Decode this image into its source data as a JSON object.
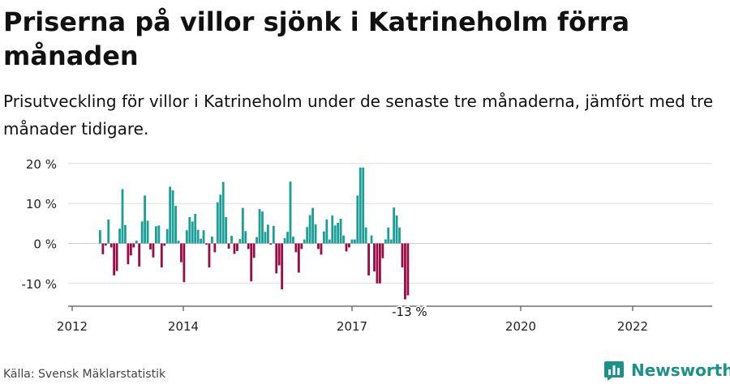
{
  "header": {
    "title": "Priserna på villor sjönk i Katrineholm förra månaden",
    "subtitle": "Prisutveckling för villor i Katrineholm under de senaste tre månaderna, jämfört med tre månader tidigare."
  },
  "footer": {
    "source": "Källa: Svensk Mäklarstatistik",
    "brand": "Newsworthy"
  },
  "colors": {
    "positive": "#1a9e96",
    "negative": "#990a46",
    "grid": "#dddddd",
    "axis": "#555555",
    "brand": "#1b9188"
  },
  "icons": {
    "brand": "bar-chart-logo-icon"
  },
  "chart_data": {
    "type": "bar",
    "title": "",
    "xlabel": "",
    "ylabel": "",
    "x_ticks": [
      "2012",
      "2014",
      "2017",
      "2020",
      "2022"
    ],
    "y_ticks": [
      "-10 %",
      "0 %",
      "10 %",
      "20 %"
    ],
    "ylim": [
      -15,
      22
    ],
    "grid": true,
    "last_label": "-13 %",
    "series": [
      {
        "name": "",
        "values": [
          3.3,
          -2.7,
          -0.5,
          6.0,
          -1.0,
          -8.0,
          -6.9,
          3.7,
          13.6,
          4.6,
          -5.2,
          -3.0,
          -1.0,
          0.7,
          -5.8,
          5.5,
          12.0,
          5.7,
          -1.5,
          -3.5,
          4.3,
          4.5,
          -6.0,
          -0.6,
          3.6,
          14.2,
          13.3,
          9.4,
          0.7,
          -4.7,
          -9.7,
          3.3,
          6.6,
          5.5,
          7.4,
          3.4,
          1.2,
          3.3,
          -0.3,
          -6.0,
          1.7,
          -2.2,
          10.3,
          12.2,
          15.4,
          6.6,
          -1.3,
          1.9,
          -2.6,
          -1.9,
          1.1,
          8.9,
          3.1,
          -1.4,
          -9.5,
          -3.6,
          1.6,
          8.6,
          8.0,
          2.9,
          4.7,
          -0.3,
          4.4,
          -7.5,
          -5.5,
          -11.5,
          1.3,
          2.9,
          15.5,
          1.7,
          -2.2,
          -7.3,
          -1.4,
          1.0,
          4.1,
          7.1,
          8.9,
          4.8,
          -1.4,
          -2.8,
          3.0,
          6.0,
          1.0,
          7.0,
          4.5,
          5.2,
          6.2,
          2.0,
          -2.0,
          -1.0,
          1.0,
          1.0,
          12.0,
          19.0,
          19.0,
          4.0,
          -8.0,
          2.0,
          -7.0,
          -10.0,
          -10.0,
          -3.7,
          1.0,
          4.0,
          1.0,
          9.0,
          7.0,
          4.0,
          -6.0,
          -14.0,
          -13.0
        ]
      }
    ]
  }
}
